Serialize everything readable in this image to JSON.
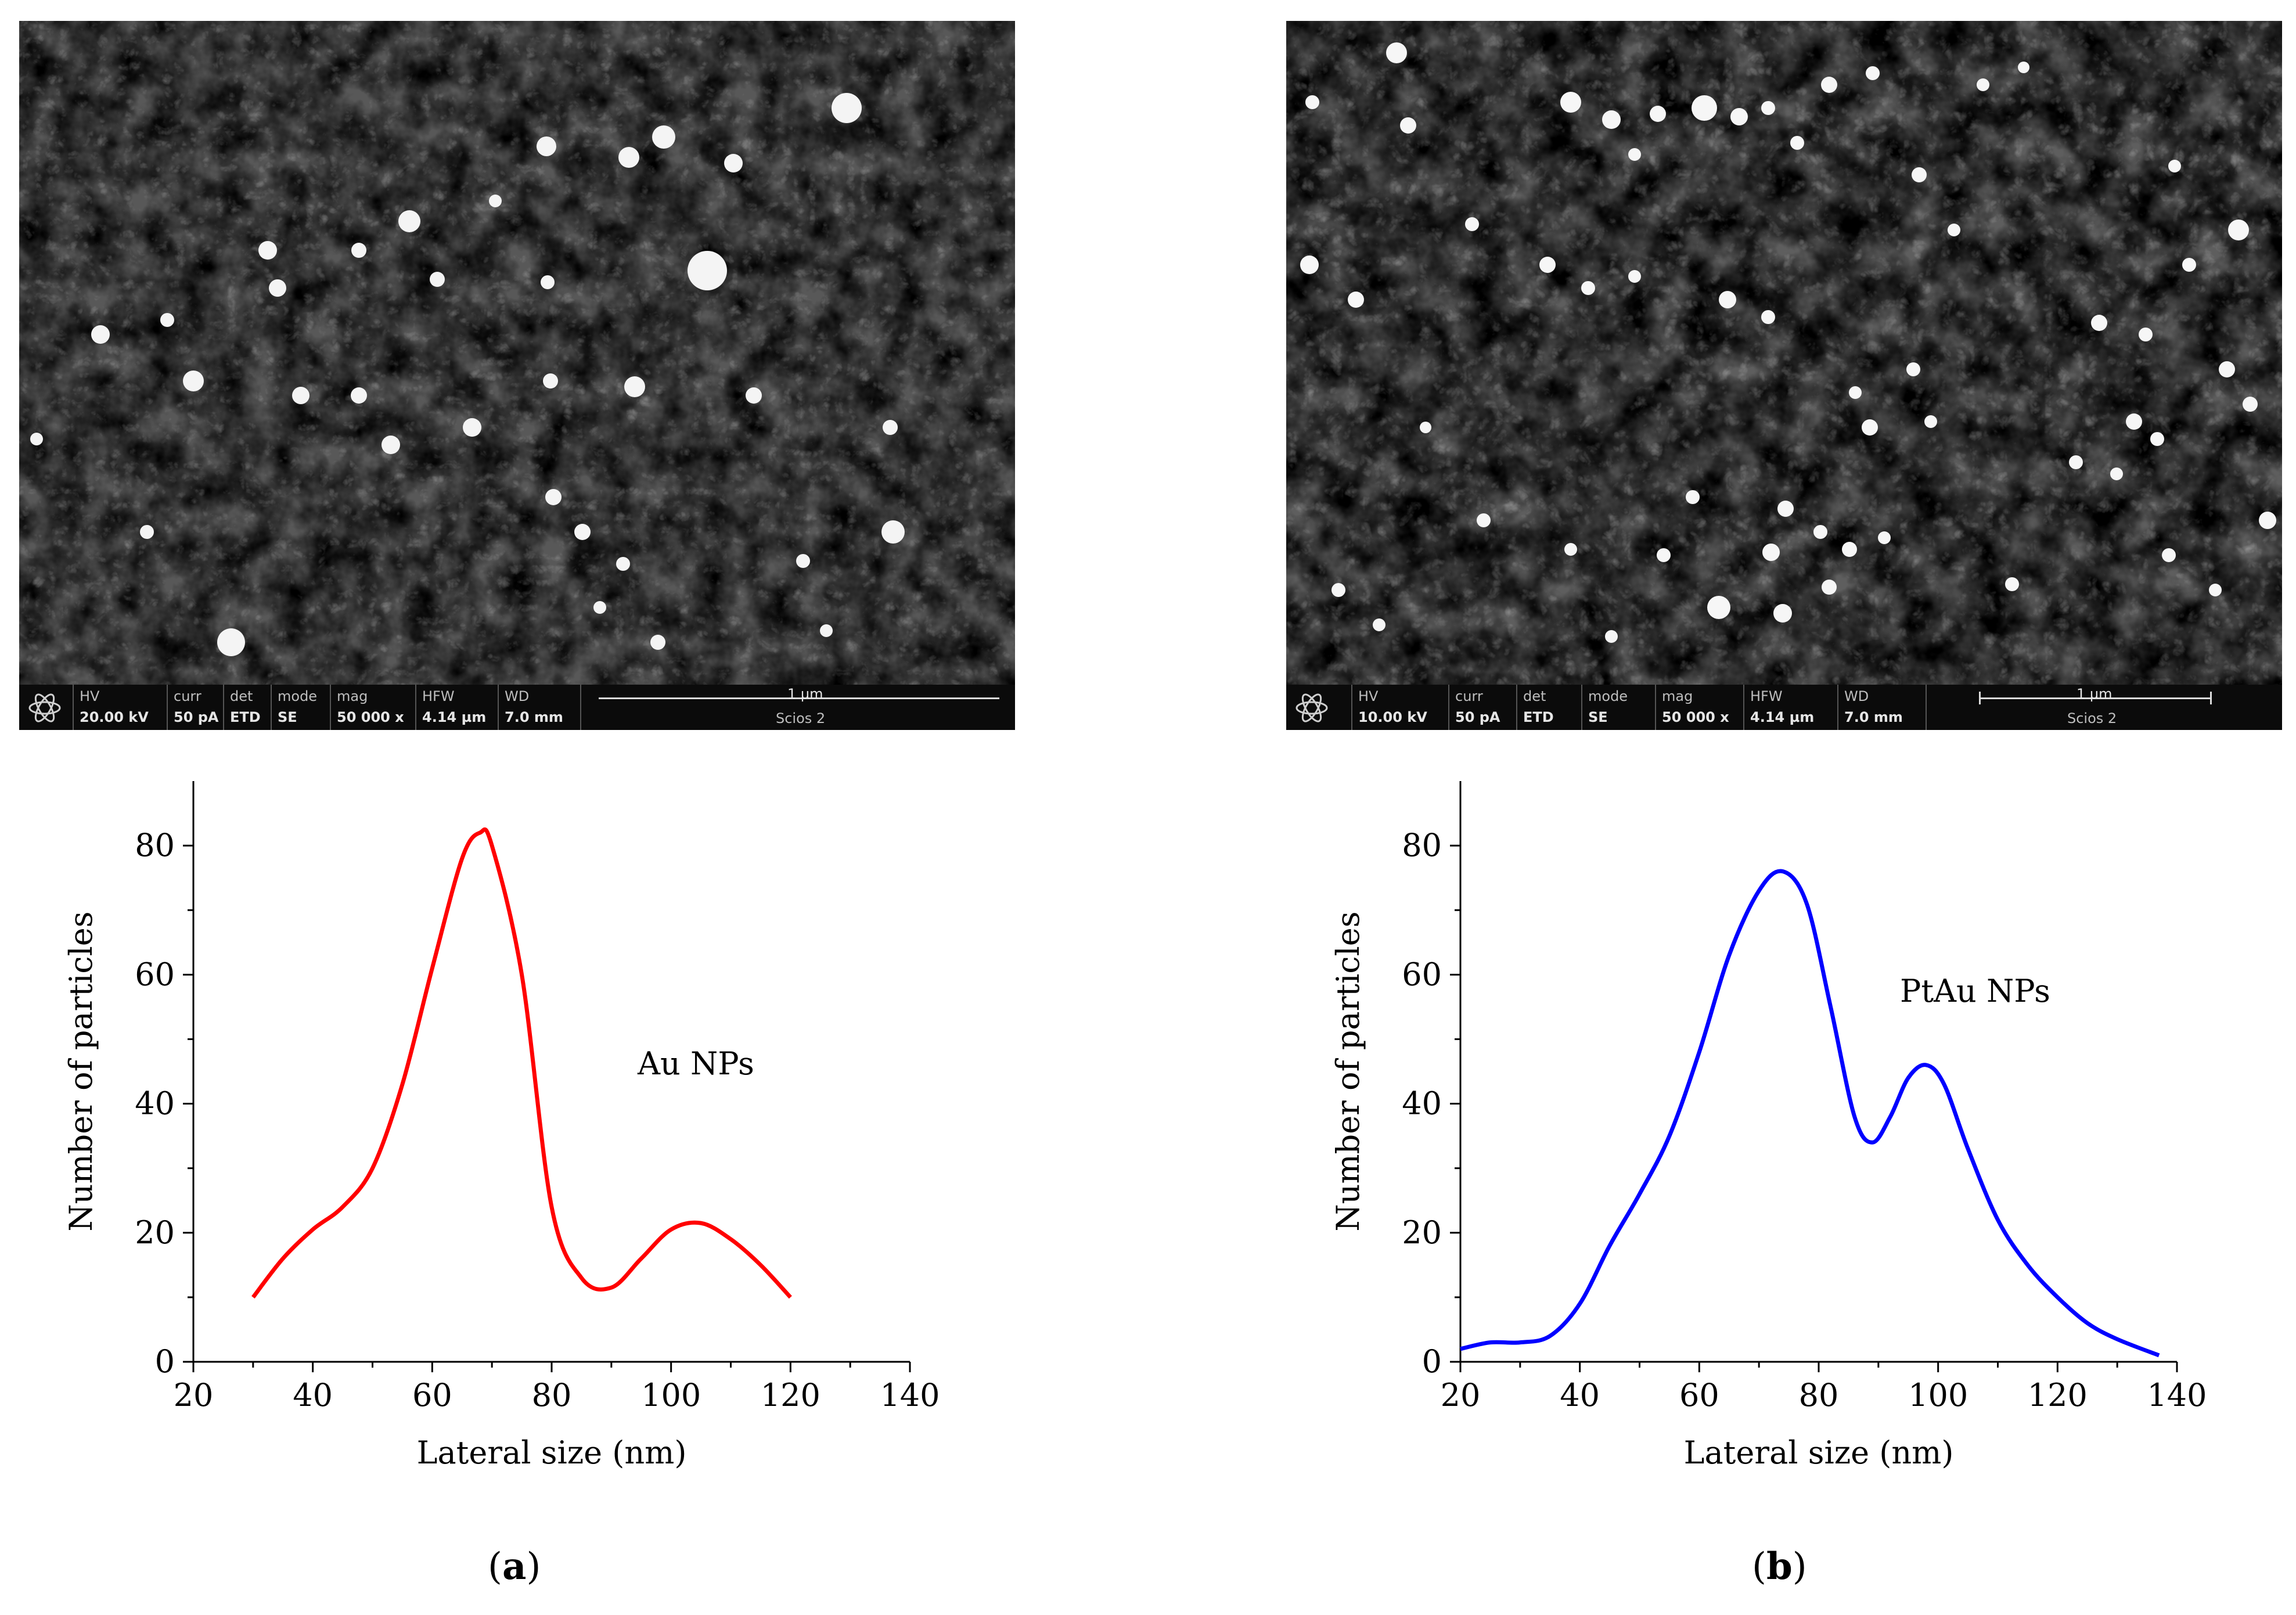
{
  "panels": [
    {
      "id": "a",
      "caption_open": "(",
      "caption_letter": "a",
      "caption_close": ")",
      "sem": {
        "labels": [
          "HV",
          "curr",
          "det",
          "mode",
          "mag",
          "HFW",
          "WD"
        ],
        "values": [
          "20.00 kV",
          "50 pA",
          "ETD",
          "SE",
          "50 000 x",
          "4.14 µm",
          "7.0 mm"
        ],
        "scale_label": "1 µm",
        "instrument": "Scios 2"
      }
    },
    {
      "id": "b",
      "caption_open": "(",
      "caption_letter": "b",
      "caption_close": ")",
      "sem": {
        "labels": [
          "HV",
          "curr",
          "det",
          "mode",
          "mag",
          "HFW",
          "WD"
        ],
        "values": [
          "10.00 kV",
          "50 pA",
          "ETD",
          "SE",
          "50 000 x",
          "4.14 µm",
          "7.0 mm"
        ],
        "scale_label": "1 µm",
        "instrument": "Scios 2"
      }
    }
  ],
  "chart_data": [
    {
      "type": "line",
      "title": "",
      "xlabel": "Lateral size (nm)",
      "ylabel": "Number of particles",
      "xlim": [
        20,
        140
      ],
      "ylim": [
        0,
        90
      ],
      "xticks": [
        20,
        40,
        60,
        80,
        100,
        120,
        140
      ],
      "yticks": [
        0,
        20,
        40,
        60,
        80
      ],
      "annotation": "Au NPs",
      "color": "#ff0000",
      "series": [
        {
          "name": "Au NPs",
          "x": [
            30,
            35,
            40,
            45,
            50,
            55,
            60,
            65,
            68,
            70,
            75,
            80,
            85,
            90,
            95,
            100,
            105,
            110,
            115,
            120
          ],
          "y": [
            10,
            16,
            20.5,
            24,
            30,
            43,
            61,
            78,
            82,
            80,
            60,
            24,
            13,
            11.5,
            16,
            20.5,
            21.5,
            19,
            15,
            10
          ]
        }
      ]
    },
    {
      "type": "line",
      "title": "",
      "xlabel": "Lateral size (nm)",
      "ylabel": "Number of particles",
      "xlim": [
        20,
        140
      ],
      "ylim": [
        0,
        90
      ],
      "xticks": [
        20,
        40,
        60,
        80,
        100,
        120,
        140
      ],
      "yticks": [
        0,
        20,
        40,
        60,
        80
      ],
      "annotation": "PtAu NPs",
      "color": "#0000ff",
      "series": [
        {
          "name": "PtAu NPs",
          "x": [
            20,
            25,
            30,
            35,
            40,
            45,
            50,
            55,
            60,
            65,
            70,
            74,
            78,
            82,
            86,
            89,
            92,
            95,
            98,
            101,
            105,
            110,
            115,
            120,
            125,
            130,
            137
          ],
          "y": [
            2,
            3,
            3,
            4,
            9,
            18,
            26,
            35,
            48,
            63,
            73,
            76,
            71,
            55,
            38,
            34,
            38,
            44,
            46,
            43,
            33,
            22,
            15,
            10,
            6,
            3.5,
            1
          ]
        }
      ]
    }
  ]
}
